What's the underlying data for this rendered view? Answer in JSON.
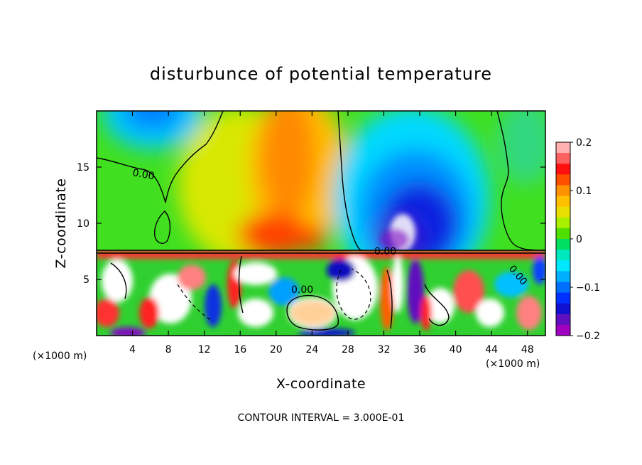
{
  "chart_data": {
    "type": "heatmap",
    "title": "disturbunce of potential temperature",
    "xlabel": "X-coordinate",
    "ylabel": "Z-coordinate",
    "x_unit_label": "(×1000 m)",
    "x_unit_label_right": "(×1000 m)",
    "xlim": [
      0,
      50
    ],
    "ylim": [
      0,
      20
    ],
    "x_ticks": [
      4,
      8,
      12,
      16,
      20,
      24,
      28,
      32,
      36,
      40,
      44,
      48
    ],
    "y_ticks": [
      5,
      10,
      15
    ],
    "contour_labels": [
      "0.00",
      "0.00",
      "0.00",
      "0.00"
    ],
    "colorbar": {
      "min": -0.2,
      "max": 0.2,
      "ticks": [
        "0.2",
        "0.1",
        "0",
        "−0.1",
        "−0.2"
      ],
      "tick_values": [
        0.2,
        0.1,
        0,
        -0.1,
        -0.2
      ],
      "colors_top_to_bottom": [
        "#ffb0b0",
        "#ff6060",
        "#ff1010",
        "#ff5000",
        "#ff9000",
        "#ffc000",
        "#e8e000",
        "#a8f000",
        "#50e000",
        "#00e060",
        "#00e8c0",
        "#00e8ff",
        "#00b0ff",
        "#0070ff",
        "#0030ff",
        "#1010d0",
        "#6010c0",
        "#a000c0"
      ]
    },
    "footer": "CONTOUR INTERVAL = 3.000E-01",
    "colors": {
      "background_field": "#30e030",
      "warm_core": "#ff8000",
      "cold_core": "#1010d0"
    }
  }
}
